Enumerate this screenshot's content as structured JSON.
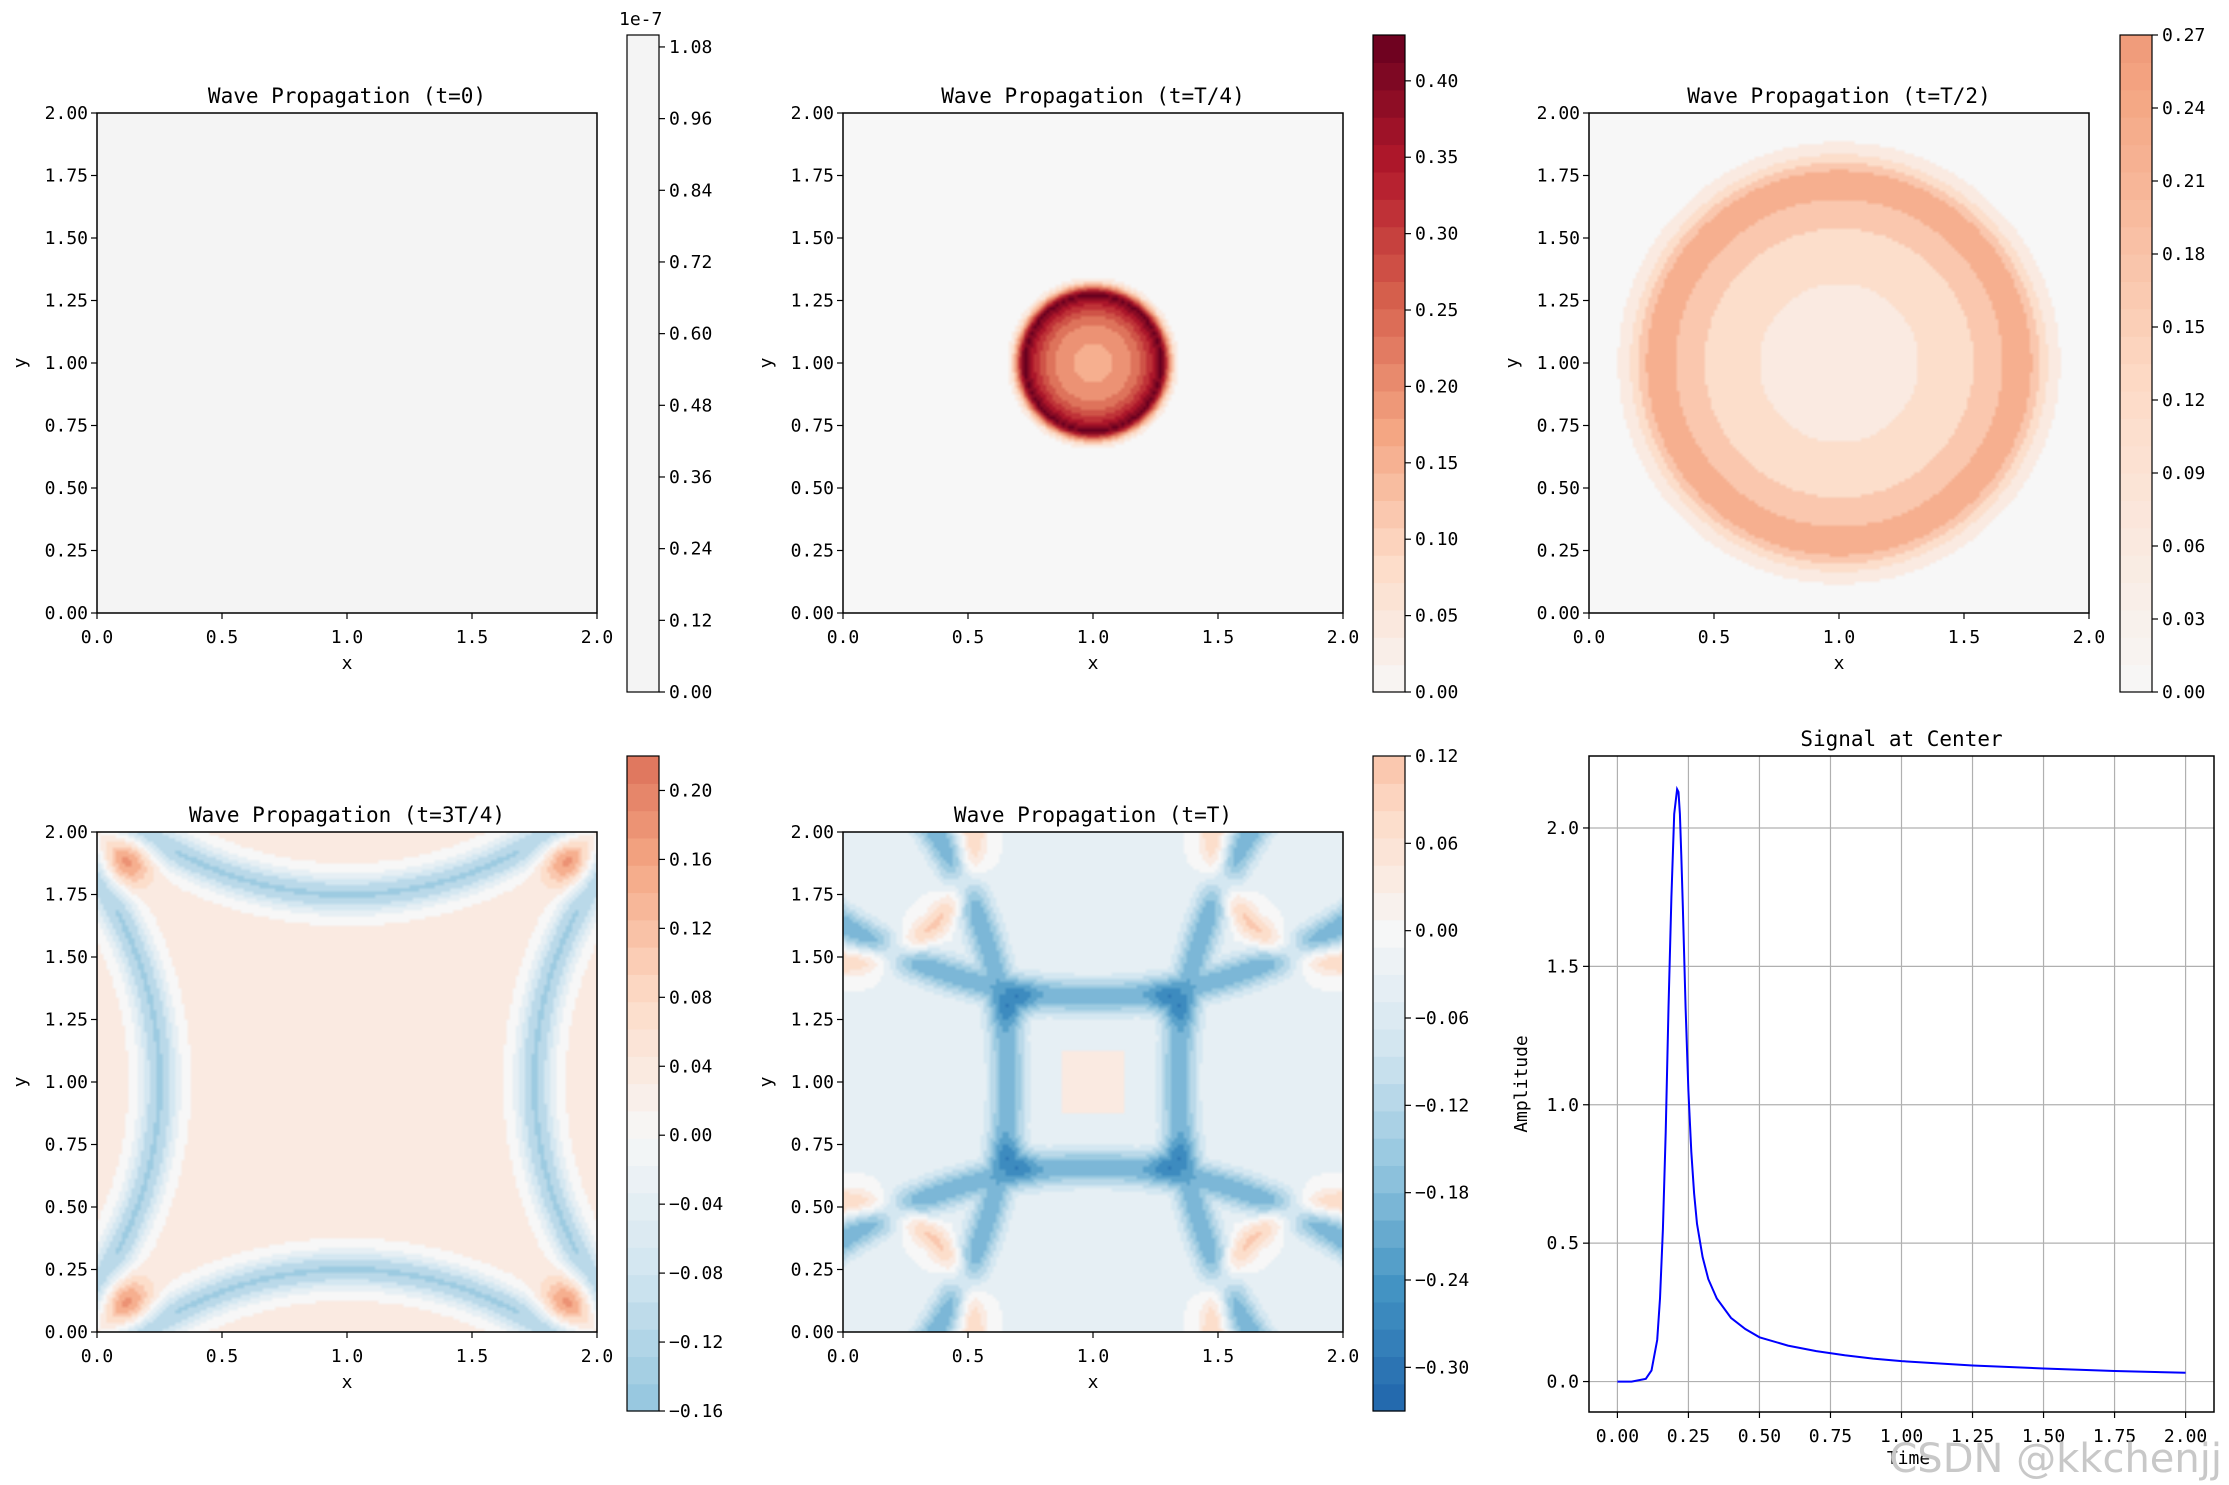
{
  "watermark": "CSDN @kkchenjj",
  "colors": {
    "axis": "#000000",
    "grid": "#b0b0b0",
    "signal_line": "#0000ff",
    "background": "#ffffff",
    "rdbu": [
      "#053061",
      "#2166ac",
      "#4393c3",
      "#92c5de",
      "#d1e5f0",
      "#f7f7f7",
      "#fddbc7",
      "#f4a582",
      "#d6604d",
      "#b2182b",
      "#67001f"
    ]
  },
  "chart_data": [
    {
      "id": "p0",
      "type": "heatmap",
      "title": "Wave Propagation (t=0)",
      "xlabel": "x",
      "ylabel": "y",
      "xlim": [
        0,
        2
      ],
      "ylim": [
        0,
        2
      ],
      "xticks": [
        "0.0",
        "0.5",
        "1.0",
        "1.5",
        "2.0"
      ],
      "yticks": [
        "0.00",
        "0.25",
        "0.50",
        "0.75",
        "1.00",
        "1.25",
        "1.50",
        "1.75",
        "2.00"
      ],
      "field": {
        "kind": "uniform",
        "value": 0
      },
      "colorbar": {
        "range": [
          0.0,
          1.1e-07
        ],
        "exponent": "1e-7",
        "ticks": [
          "0.00",
          "0.12",
          "0.24",
          "0.36",
          "0.48",
          "0.60",
          "0.72",
          "0.84",
          "0.96",
          "1.08"
        ],
        "color_min": "#f4f4f4",
        "color_max": "#f4f4f4"
      }
    },
    {
      "id": "p1",
      "type": "heatmap",
      "title": "Wave Propagation (t=T/4)",
      "xlabel": "x",
      "ylabel": "y",
      "xlim": [
        0,
        2
      ],
      "ylim": [
        0,
        2
      ],
      "xticks": [
        "0.0",
        "0.5",
        "1.0",
        "1.5",
        "2.0"
      ],
      "yticks": [
        "0.00",
        "0.25",
        "0.50",
        "0.75",
        "1.00",
        "1.25",
        "1.50",
        "1.75",
        "2.00"
      ],
      "field": {
        "kind": "ring",
        "center": [
          1.0,
          1.0
        ],
        "ring_radius": 0.27,
        "ring_peak": 0.42,
        "inner_value": 0.17,
        "background_value": 0.0
      },
      "colorbar": {
        "range": [
          0.0,
          0.43
        ],
        "exponent": "",
        "ticks": [
          "0.00",
          "0.05",
          "0.10",
          "0.15",
          "0.20",
          "0.25",
          "0.30",
          "0.35",
          "0.40"
        ],
        "vmin": -0.43,
        "vmax": 0.43
      }
    },
    {
      "id": "p2",
      "type": "heatmap",
      "title": "Wave Propagation (t=T/2)",
      "xlabel": "x",
      "ylabel": "y",
      "xlim": [
        0,
        2
      ],
      "ylim": [
        0,
        2
      ],
      "xticks": [
        "0.0",
        "0.5",
        "1.0",
        "1.5",
        "2.0"
      ],
      "yticks": [
        "0.00",
        "0.25",
        "0.50",
        "0.75",
        "1.00",
        "1.25",
        "1.50",
        "1.75",
        "2.00"
      ],
      "field": {
        "kind": "ring",
        "center": [
          1.0,
          1.0
        ],
        "ring_radius": 0.72,
        "ring_peak": 0.24,
        "inner_value": 0.07,
        "background_value": 0.0
      },
      "colorbar": {
        "range": [
          0.0,
          0.27
        ],
        "exponent": "",
        "ticks": [
          "0.00",
          "0.03",
          "0.06",
          "0.09",
          "0.12",
          "0.15",
          "0.18",
          "0.21",
          "0.24",
          "0.27"
        ],
        "vmin": -0.62,
        "vmax": 0.62
      }
    },
    {
      "id": "p3",
      "type": "heatmap",
      "title": "Wave Propagation (t=3T/4)",
      "xlabel": "x",
      "ylabel": "y",
      "xlim": [
        0,
        2
      ],
      "ylim": [
        0,
        2
      ],
      "xticks": [
        "0.0",
        "0.5",
        "1.0",
        "1.5",
        "2.0"
      ],
      "yticks": [
        "0.00",
        "0.25",
        "0.50",
        "0.75",
        "1.00",
        "1.25",
        "1.50",
        "1.75",
        "2.00"
      ],
      "field": {
        "kind": "edge_arcs",
        "interior_value": 0.03,
        "arc_value": -0.13,
        "corner_value": 0.18
      },
      "colorbar": {
        "range": [
          -0.16,
          0.22
        ],
        "exponent": "",
        "ticks": [
          "−0.16",
          "−0.12",
          "−0.08",
          "−0.04",
          "0.00",
          "0.04",
          "0.08",
          "0.12",
          "0.16",
          "0.20"
        ],
        "vmin": -0.4,
        "vmax": 0.4
      }
    },
    {
      "id": "p4",
      "type": "heatmap",
      "title": "Wave Propagation (t=T)",
      "xlabel": "x",
      "ylabel": "y",
      "xlim": [
        0,
        2
      ],
      "ylim": [
        0,
        2
      ],
      "xticks": [
        "0.0",
        "0.5",
        "1.0",
        "1.5",
        "2.0"
      ],
      "yticks": [
        "0.00",
        "0.25",
        "0.50",
        "0.75",
        "1.00",
        "1.25",
        "1.50",
        "1.75",
        "2.00"
      ],
      "field": {
        "kind": "cross_arcs",
        "interior_value": -0.02,
        "arc_value": -0.2,
        "node_value": -0.32,
        "center_value": 0.05,
        "corner_value": 0.1
      },
      "colorbar": {
        "range": [
          -0.33,
          0.12
        ],
        "exponent": "",
        "ticks": [
          "−0.30",
          "−0.24",
          "−0.18",
          "−0.12",
          "−0.06",
          "0.00",
          "0.06",
          "0.12"
        ],
        "vmin": -0.41,
        "vmax": 0.41
      }
    },
    {
      "id": "p5",
      "type": "line",
      "title": "Signal at Center",
      "xlabel": "Time",
      "ylabel": "Amplitude",
      "xlim": [
        -0.1,
        2.1
      ],
      "ylim": [
        -0.11,
        2.26
      ],
      "grid": true,
      "xticks": [
        0.0,
        0.25,
        0.5,
        0.75,
        1.0,
        1.25,
        1.5,
        1.75,
        2.0
      ],
      "xticklabels": [
        "0.00",
        "0.25",
        "0.50",
        "0.75",
        "1.00",
        "1.25",
        "1.50",
        "1.75",
        "2.00"
      ],
      "yticks": [
        0.0,
        0.5,
        1.0,
        1.5,
        2.0
      ],
      "yticklabels": [
        "0.0",
        "0.5",
        "1.0",
        "1.5",
        "2.0"
      ],
      "series": [
        {
          "name": "center",
          "color": "#0000ff",
          "x": [
            0.0,
            0.05,
            0.1,
            0.12,
            0.14,
            0.15,
            0.16,
            0.17,
            0.18,
            0.19,
            0.2,
            0.21,
            0.215,
            0.22,
            0.225,
            0.23,
            0.24,
            0.25,
            0.26,
            0.27,
            0.28,
            0.3,
            0.32,
            0.35,
            0.4,
            0.45,
            0.5,
            0.6,
            0.7,
            0.8,
            0.9,
            1.0,
            1.25,
            1.5,
            1.75,
            2.0
          ],
          "y": [
            0.0,
            0.0,
            0.01,
            0.04,
            0.15,
            0.3,
            0.55,
            0.9,
            1.35,
            1.75,
            2.05,
            2.14,
            2.13,
            2.05,
            1.9,
            1.72,
            1.35,
            1.05,
            0.83,
            0.68,
            0.57,
            0.45,
            0.37,
            0.3,
            0.23,
            0.19,
            0.16,
            0.13,
            0.11,
            0.095,
            0.083,
            0.074,
            0.058,
            0.047,
            0.038,
            0.032
          ]
        }
      ]
    }
  ]
}
